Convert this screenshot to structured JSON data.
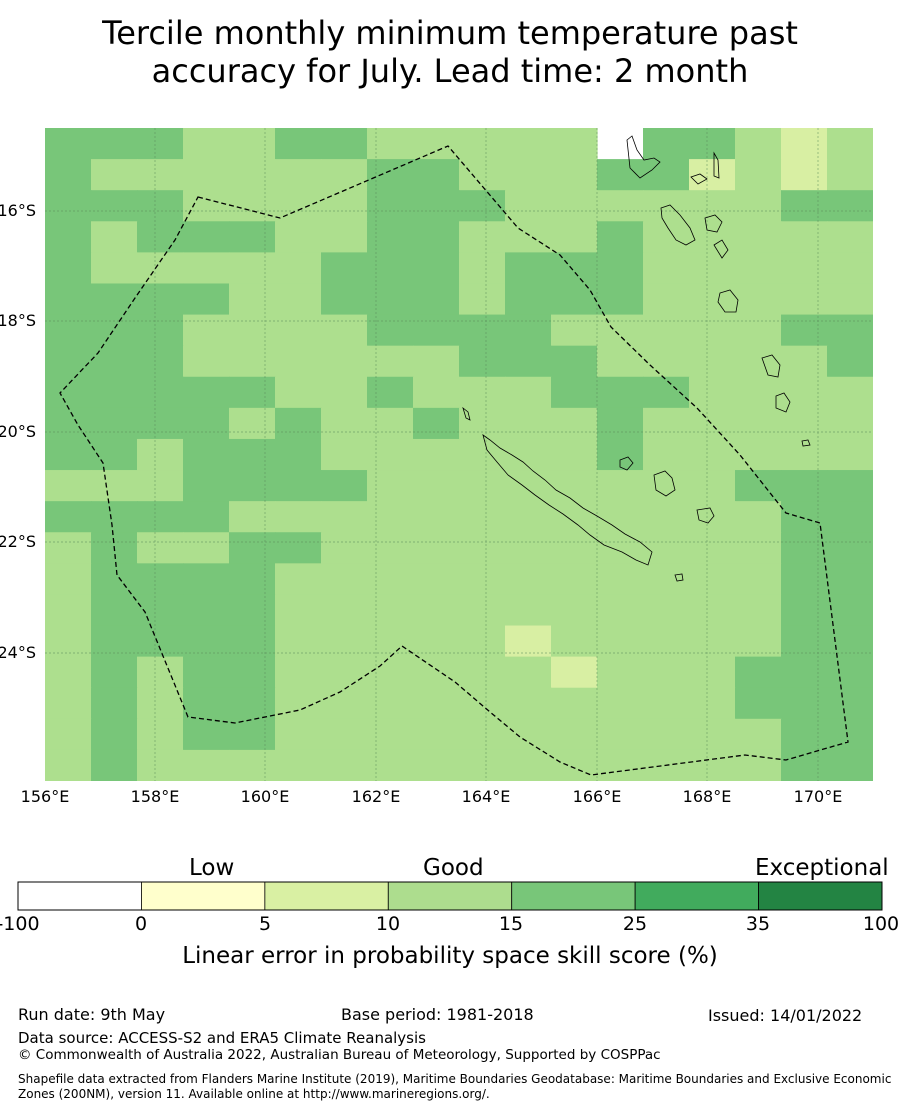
{
  "title": {
    "line1": "Tercile monthly minimum temperature past",
    "line2": "accuracy for July. Lead time: 2 month"
  },
  "map": {
    "lat_labels": [
      "16°S",
      "18°S",
      "20°S",
      "22°S",
      "24°S"
    ],
    "lon_labels": [
      "156°E",
      "158°E",
      "160°E",
      "162°E",
      "164°E",
      "166°E",
      "168°E",
      "170°E"
    ],
    "grid_colors": {
      "1": "#d8efa3",
      "2": "#addf8e",
      "3": "#78c679"
    },
    "cells": [
      "3332233222224332123333",
      "3222222332223312123333",
      "3332222333222222333333",
      "3233322332223222222333",
      "3222223332333222223333",
      "3333223332333222223333",
      "3332222333322222333333",
      "3332222223332222233322",
      "3333322322233322223332",
      "3333232232223222223322",
      "3323332222223222222333",
      "2223333222222223332222",
      "3333222222222222333222",
      "2322332222222222332332",
      "2333322222222222333332",
      "2333322222222222333332",
      "2333322222122222333332",
      "2323322222212223333222",
      "2323322222222223332232",
      "2323322222222222333322",
      "2322222222222222333333",
      "2222222222122222333333",
      "3332232222222222333333",
      "3332322222122223223333",
      "3333322222122222223322",
      "3333222222122222233333",
      "2333222222222212232333",
      "2222222222222222222222",
      "2222222222222222222222",
      "2222222222222222222222"
    ]
  },
  "colorbar": {
    "categories": [
      "Low",
      "Good",
      "Exceptional"
    ],
    "bins": [
      {
        "from": -100,
        "to": 0,
        "color": "#ffffff"
      },
      {
        "from": 0,
        "to": 5,
        "color": "#ffffcc"
      },
      {
        "from": 5,
        "to": 10,
        "color": "#d9f0a3"
      },
      {
        "from": 10,
        "to": 15,
        "color": "#addd8e"
      },
      {
        "from": 15,
        "to": 25,
        "color": "#78c679"
      },
      {
        "from": 25,
        "to": 35,
        "color": "#41ab5d"
      },
      {
        "from": 35,
        "to": 100,
        "color": "#238443"
      }
    ],
    "tick_labels": [
      "-100",
      "0",
      "5",
      "10",
      "15",
      "25",
      "35",
      "100"
    ],
    "label": "Linear error in probability space skill score (%)"
  },
  "footer": {
    "run_date": "Run date: 9th May",
    "base_period": "Base period: 1981-2018",
    "issued": "Issued: 14/01/2022",
    "data_source": "Data source: ACCESS-S2 and ERA5 Climate Reanalysis",
    "copyright": "© Commonwealth of Australia 2022, Australian Bureau of Meteorology, Supported by COSPPac",
    "shapefile": "Shapefile data extracted from Flanders Marine Institute (2019), Maritime Boundaries Geodatabase: Maritime Boundaries and Exclusive Economic Zones (200NM), version 11. Available online at http://www.marineregions.org/."
  }
}
